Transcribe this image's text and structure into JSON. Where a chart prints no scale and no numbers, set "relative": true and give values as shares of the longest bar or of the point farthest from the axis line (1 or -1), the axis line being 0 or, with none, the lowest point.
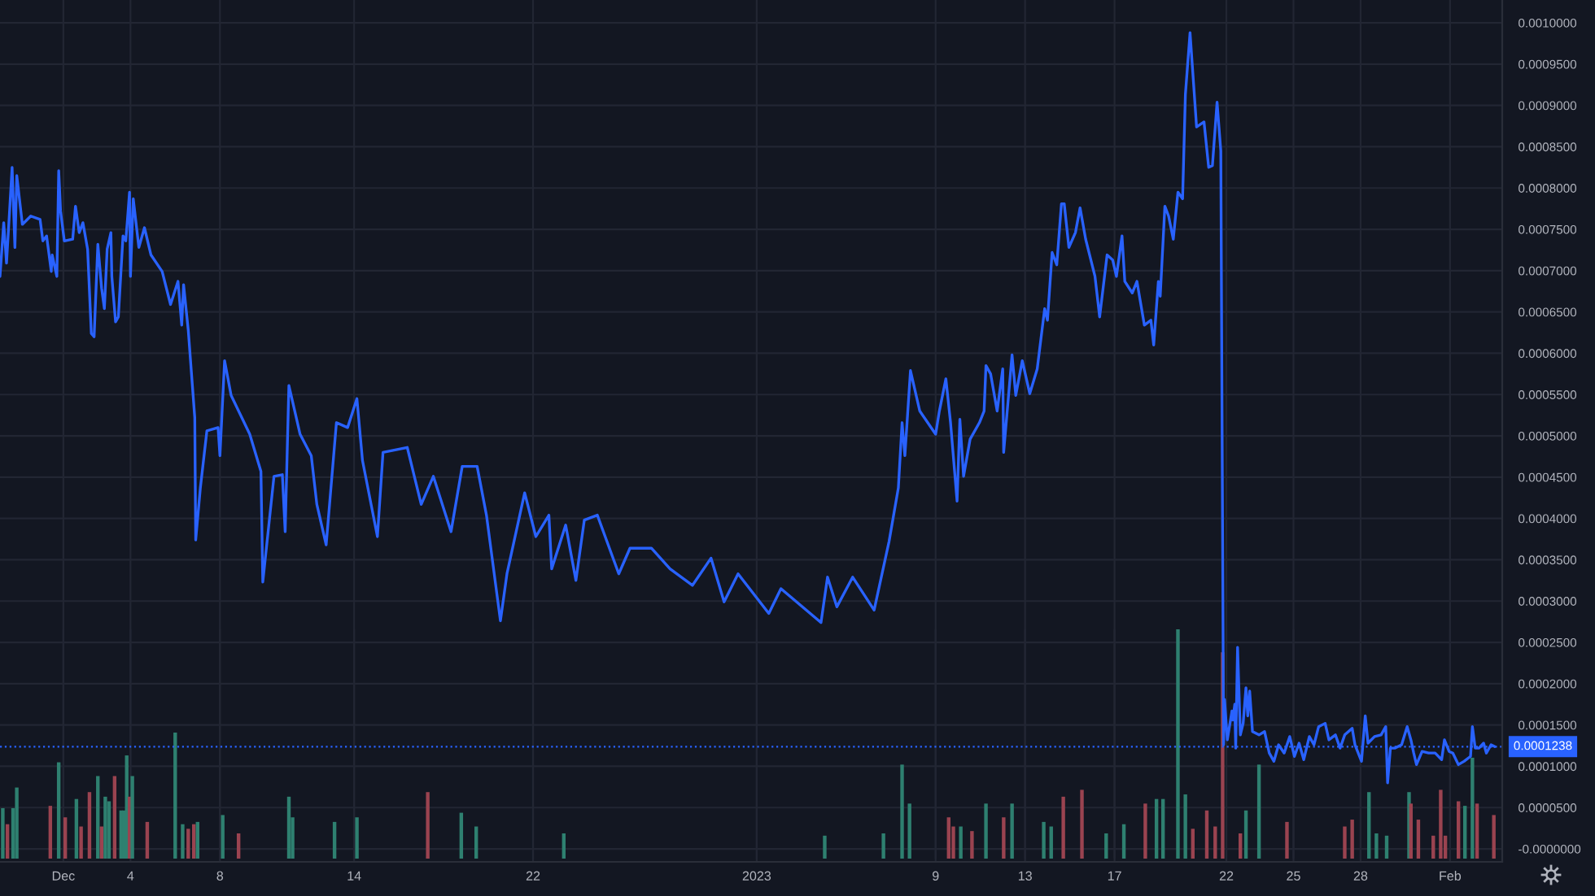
{
  "chart_data": [
    {
      "type": "line",
      "x": [
        "2022-11-28T04:00",
        "2022-11-28T08:00",
        "2022-11-28T11:00",
        "2022-11-28T17:00",
        "2022-11-28T20:00",
        "2022-11-28T22:00",
        "2022-11-29T04:00",
        "2022-11-29T13:00",
        "2022-11-29T23:00",
        "2022-11-30T02:00",
        "2022-11-30T06:00",
        "2022-11-30T11:00",
        "2022-11-30T12:00",
        "2022-11-30T17:00",
        "2022-11-30T19:00",
        "2022-11-30T21:00",
        "2022-12-01T01:00",
        "2022-12-01T10:00",
        "2022-12-01T13:00",
        "2022-12-01T17:00",
        "2022-12-01T21:00",
        "2022-12-02T02:00",
        "2022-12-02T06:00",
        "2022-12-02T09:00",
        "2022-12-02T13:00",
        "2022-12-02T17:00",
        "2022-12-02T20:00",
        "2022-12-02T23:00",
        "2022-12-03T03:00",
        "2022-12-03T04:00",
        "2022-12-03T08:00",
        "2022-12-03T11:00",
        "2022-12-03T16:00",
        "2022-12-03T19:00",
        "2022-12-03T23:00",
        "2022-12-04T00:00",
        "2022-12-04T03:00",
        "2022-12-04T09:00",
        "2022-12-04T15:00",
        "2022-12-04T22:00",
        "2022-12-05T10:00",
        "2022-12-05T19:00",
        "2022-12-06T03:00",
        "2022-12-06T07:00",
        "2022-12-06T09:00",
        "2022-12-06T14:00",
        "2022-12-06T21:00",
        "2022-12-06T22:00",
        "2022-12-07T03:00",
        "2022-12-07T10:00",
        "2022-12-07T22:00",
        "2022-12-08T00:00",
        "2022-12-08T05:00",
        "2022-12-08T12:00",
        "2022-12-09T08:00",
        "2022-12-09T20:00",
        "2022-12-09T22:00",
        "2022-12-10T10:00",
        "2022-12-10T19:00",
        "2022-12-10T22:00",
        "2022-12-11T02:00",
        "2022-12-11T14:00",
        "2022-12-12T02:00",
        "2022-12-12T08:00",
        "2022-12-12T18:00",
        "2022-12-13T05:00",
        "2022-12-13T17:00",
        "2022-12-14T03:00",
        "2022-12-14T09:00",
        "2022-12-15T01:00",
        "2022-12-15T07:00",
        "2022-12-16T09:00",
        "2022-12-17T00:00",
        "2022-12-17T13:00",
        "2022-12-18T08:00",
        "2022-12-18T20:00",
        "2022-12-19T12:00",
        "2022-12-19T22:00",
        "2022-12-20T13:00",
        "2022-12-20T20:00",
        "2022-12-21T15:00",
        "2022-12-22T03:00",
        "2022-12-22T17:00",
        "2022-12-22T20:00",
        "2022-12-23T11:00",
        "2022-12-23T22:00",
        "2022-12-24T07:00",
        "2022-12-24T21:00",
        "2022-12-25T20:00",
        "2022-12-26T08:00",
        "2022-12-27T07:00",
        "2022-12-28T03:00",
        "2022-12-29T03:00",
        "2022-12-29T23:00",
        "2022-12-30T13:00",
        "2022-12-31T04:00",
        "2023-01-01T13:00",
        "2023-01-02T02:00",
        "2023-01-03T21:00",
        "2023-01-04T04:00",
        "2023-01-04T14:00",
        "2023-01-05T07:00",
        "2023-01-06T06:00",
        "2023-01-06T22:00",
        "2023-01-07T08:00",
        "2023-01-07T12:00",
        "2023-01-07T15:00",
        "2023-01-07T21:00",
        "2023-01-08T07:00",
        "2023-01-09T00:00",
        "2023-01-09T04:00",
        "2023-01-09T11:00",
        "2023-01-09T16:00",
        "2023-01-09T23:00",
        "2023-01-10T02:00",
        "2023-01-10T06:00",
        "2023-01-10T13:00",
        "2023-01-10T23:00",
        "2023-01-11T04:00",
        "2023-01-11T06:00",
        "2023-01-11T11:00",
        "2023-01-11T18:00",
        "2023-01-12T00:00",
        "2023-01-12T01:00",
        "2023-01-12T10:00",
        "2023-01-12T14:00",
        "2023-01-12T21:00",
        "2023-01-13T05:00",
        "2023-01-13T13:00",
        "2023-01-13T21:00",
        "2023-01-14T00:00",
        "2023-01-14T05:00",
        "2023-01-14T10:00",
        "2023-01-14T15:00",
        "2023-01-14T18:00",
        "2023-01-14T23:00",
        "2023-01-15T06:00",
        "2023-01-15T11:00",
        "2023-01-15T17:00",
        "2023-01-16T03:00",
        "2023-01-16T08:00",
        "2023-01-16T16:00",
        "2023-01-16T22:00",
        "2023-01-17T02:00",
        "2023-01-17T08:00",
        "2023-01-17T11:00",
        "2023-01-17T19:00",
        "2023-01-18T00:00",
        "2023-01-18T08:00",
        "2023-01-18T15:00",
        "2023-01-18T18:00",
        "2023-01-18T23:00",
        "2023-01-19T01:00",
        "2023-01-19T06:00",
        "2023-01-19T10:00",
        "2023-01-19T15:00",
        "2023-01-19T20:00",
        "2023-01-20T01:00",
        "2023-01-20T04:00",
        "2023-01-20T09:00",
        "2023-01-20T16:00",
        "2023-01-21T00:00",
        "2023-01-21T05:00",
        "2023-01-21T09:00",
        "2023-01-21T14:00",
        "2023-01-21T18:00",
        "2023-01-21T21:00",
        "2023-01-21T22:00",
        "2023-01-22T01:00",
        "2023-01-22T06:00",
        "2023-01-22T07:00",
        "2023-01-22T09:00",
        "2023-01-22T10:00",
        "2023-01-22T12:00",
        "2023-01-22T15:00",
        "2023-01-22T18:00",
        "2023-01-22T21:00",
        "2023-01-22T23:00",
        "2023-01-23T01:00",
        "2023-01-23T04:00",
        "2023-01-23T11:00",
        "2023-01-23T17:00",
        "2023-01-23T22:00",
        "2023-01-24T03:00",
        "2023-01-24T08:00",
        "2023-01-24T14:00",
        "2023-01-24T20:00",
        "2023-01-25T01:00",
        "2023-01-25T06:00",
        "2023-01-25T11:00",
        "2023-01-25T17:00",
        "2023-01-25T22:00",
        "2023-01-26T03:00",
        "2023-01-26T10:00",
        "2023-01-26T14:00",
        "2023-01-26T21:00",
        "2023-01-27T02:00",
        "2023-01-27T07:00",
        "2023-01-27T15:00",
        "2023-01-27T18:00",
        "2023-01-28T01:00",
        "2023-01-28T05:00",
        "2023-01-28T08:00",
        "2023-01-28T15:00",
        "2023-01-28T22:00",
        "2023-01-29T03:00",
        "2023-01-29T05:00",
        "2023-01-29T08:00",
        "2023-01-29T13:00",
        "2023-01-29T20:00",
        "2023-01-30T02:00",
        "2023-01-30T06:00",
        "2023-01-30T09:00",
        "2023-01-30T12:00",
        "2023-01-30T18:00",
        "2023-01-31T01:00",
        "2023-01-31T08:00",
        "2023-01-31T15:00",
        "2023-01-31T18:00",
        "2023-01-31T23:00",
        "2023-02-01T03:00",
        "2023-02-01T09:00",
        "2023-02-01T15:00",
        "2023-02-01T22:00",
        "2023-02-02T00:00",
        "2023-02-02T03:00",
        "2023-02-02T07:00",
        "2023-02-02T12:00",
        "2023-02-02T15:00",
        "2023-02-02T20:00",
        "2023-02-03T00:00"
      ],
      "series": [
        {
          "color": "#2962ff",
          "values": [
            0.000693,
            0.000758,
            0.000709,
            0.000825,
            0.000728,
            0.000815,
            0.000756,
            0.000766,
            0.000762,
            0.000736,
            0.000742,
            0.000699,
            0.000719,
            0.000693,
            0.000821,
            0.000772,
            0.000736,
            0.000738,
            0.000778,
            0.000746,
            0.000758,
            0.000726,
            0.000624,
            0.00062,
            0.000732,
            0.000679,
            0.000654,
            0.000726,
            0.000746,
            0.000693,
            0.000638,
            0.000644,
            0.000742,
            0.000736,
            0.000795,
            0.000693,
            0.000787,
            0.000728,
            0.000752,
            0.000719,
            0.000699,
            0.000659,
            0.000687,
            0.000634,
            0.000683,
            0.000628,
            0.000522,
            0.000374,
            0.000437,
            0.000506,
            0.00051,
            0.000476,
            0.000591,
            0.000549,
            0.000502,
            0.000457,
            0.000323,
            0.000451,
            0.000453,
            0.000384,
            0.000561,
            0.000502,
            0.000476,
            0.000417,
            0.000368,
            0.000516,
            0.00051,
            0.000545,
            0.00047,
            0.000378,
            0.00048,
            0.000486,
            0.000417,
            0.000451,
            0.000384,
            0.000463,
            0.000463,
            0.000404,
            0.000276,
            0.000333,
            0.000431,
            0.000378,
            0.000404,
            0.000339,
            0.000392,
            0.000325,
            0.000398,
            0.000404,
            0.000333,
            0.000364,
            0.000364,
            0.000339,
            0.000319,
            0.000352,
            0.000299,
            0.000333,
            0.000285,
            0.000315,
            0.000274,
            0.000329,
            0.000293,
            0.000329,
            0.000289,
            0.000372,
            0.000437,
            0.000516,
            0.000476,
            0.000579,
            0.00053,
            0.000502,
            0.00053,
            0.000569,
            0.000516,
            0.000421,
            0.00052,
            0.000451,
            0.000496,
            0.000516,
            0.00053,
            0.000585,
            0.000575,
            0.00053,
            0.000581,
            0.00048,
            0.000598,
            0.000549,
            0.000591,
            0.000551,
            0.000581,
            0.000654,
            0.00064,
            0.000722,
            0.000707,
            0.000781,
            0.000781,
            0.000728,
            0.000746,
            0.000776,
            0.000738,
            0.000693,
            0.000644,
            0.000719,
            0.000713,
            0.000693,
            0.000742,
            0.000687,
            0.000673,
            0.000687,
            0.000634,
            0.00064,
            0.00061,
            0.000687,
            0.000669,
            0.000778,
            0.000766,
            0.000738,
            0.000795,
            0.000787,
            0.000913,
            0.000988,
            0.000874,
            0.00088,
            0.000825,
            0.000827,
            0.000904,
            0.000845,
            0.000126,
            0.000181,
            0.000132,
            0.000167,
            0.000156,
            0.000175,
            0.000122,
            0.000244,
            0.000138,
            0.000152,
            0.000195,
            0.000161,
            0.000191,
            0.000142,
            0.000138,
            0.000142,
            0.000116,
            0.000106,
            0.000126,
            0.000116,
            0.000136,
            0.000112,
            0.000128,
            0.000108,
            0.000136,
            0.000126,
            0.000148,
            0.000152,
            0.000132,
            0.000138,
            0.000122,
            0.000138,
            0.000146,
            0.000126,
            0.000106,
            0.000161,
            0.000128,
            0.000136,
            0.000138,
            0.000148,
            8e-05,
            0.000122,
            0.000122,
            0.000126,
            0.000148,
            0.000132,
            0.000116,
            0.000102,
            0.000118,
            0.000116,
            0.000116,
            0.000108,
            0.000132,
            0.000118,
            0.000116,
            0.000102,
            0.000106,
            0.000112,
            0.000148,
            0.000122,
            0.000122,
            0.000128,
            0.000116,
            0.000126,
            0.0001238
          ]
        }
      ],
      "xlim": [
        "2022-11-28T04:00",
        "2023-02-03T08:00"
      ],
      "xticks": [
        {
          "value": "2022-12-01",
          "label": "Dec"
        },
        {
          "value": "2022-12-04",
          "label": "4"
        },
        {
          "value": "2022-12-08",
          "label": "8"
        },
        {
          "value": "2022-12-14",
          "label": "14"
        },
        {
          "value": "2022-12-22",
          "label": "22"
        },
        {
          "value": "2023-01-01",
          "label": "2023"
        },
        {
          "value": "2023-01-09",
          "label": "9"
        },
        {
          "value": "2023-01-13",
          "label": "13"
        },
        {
          "value": "2023-01-17",
          "label": "17"
        },
        {
          "value": "2023-01-22",
          "label": "22"
        },
        {
          "value": "2023-01-25",
          "label": "25"
        },
        {
          "value": "2023-01-28",
          "label": "28"
        },
        {
          "value": "2023-02-01",
          "label": "Feb"
        }
      ],
      "ylim": [
        -1.57e-05,
        0.0010276
      ],
      "yticks": [
        {
          "value": 0,
          "label": "-0.0000000"
        },
        {
          "value": 5e-05,
          "label": "0.0000500"
        },
        {
          "value": 0.0001,
          "label": "0.0001000"
        },
        {
          "value": 0.00015,
          "label": "0.0001500"
        },
        {
          "value": 0.0002,
          "label": "0.0002000"
        },
        {
          "value": 0.00025,
          "label": "0.0002500"
        },
        {
          "value": 0.0003,
          "label": "0.0003000"
        },
        {
          "value": 0.00035,
          "label": "0.0003500"
        },
        {
          "value": 0.0004,
          "label": "0.0004000"
        },
        {
          "value": 0.00045,
          "label": "0.0004500"
        },
        {
          "value": 0.0005,
          "label": "0.0005000"
        },
        {
          "value": 0.00055,
          "label": "0.0005500"
        },
        {
          "value": 0.0006,
          "label": "0.0006000"
        },
        {
          "value": 0.00065,
          "label": "0.0006500"
        },
        {
          "value": 0.0007,
          "label": "0.0007000"
        },
        {
          "value": 0.00075,
          "label": "0.0007500"
        },
        {
          "value": 0.0008,
          "label": "0.0008000"
        },
        {
          "value": 0.00085,
          "label": "0.0008500"
        },
        {
          "value": 0.0009,
          "label": "0.0009000"
        },
        {
          "value": 0.00095,
          "label": "0.0009500"
        },
        {
          "value": 0.001,
          "label": "0.0010000"
        }
      ],
      "grid": true,
      "ref_lines": [
        {
          "axis": "y",
          "value": 0.0001238,
          "label": "0.0001238",
          "color": "#2962ff",
          "line_style": "dotted"
        }
      ]
    },
    {
      "type": "bar",
      "relative": true,
      "x": [
        "2022-11-28T07:00",
        "2022-11-28T12:00",
        "2022-11-28T18:00",
        "2022-11-28T22:00",
        "2022-11-30T10:00",
        "2022-11-30T19:00",
        "2022-12-01T02:00",
        "2022-12-01T14:00",
        "2022-12-01T19:00",
        "2022-12-02T04:00",
        "2022-12-02T13:00",
        "2022-12-02T17:00",
        "2022-12-02T21:00",
        "2022-12-03T01:00",
        "2022-12-03T07:00",
        "2022-12-03T14:00",
        "2022-12-03T17:00",
        "2022-12-03T20:00",
        "2022-12-03T23:00",
        "2022-12-04T02:00",
        "2022-12-04T18:00",
        "2022-12-06T00:00",
        "2022-12-06T08:00",
        "2022-12-06T14:00",
        "2022-12-06T20:00",
        "2022-12-07T00:00",
        "2022-12-08T03:00",
        "2022-12-08T20:00",
        "2022-12-11T02:00",
        "2022-12-11T06:00",
        "2022-12-13T03:00",
        "2022-12-14T03:00",
        "2022-12-17T07:00",
        "2022-12-18T19:00",
        "2022-12-19T11:00",
        "2022-12-23T09:00",
        "2023-01-04T01:00",
        "2023-01-06T16:00",
        "2023-01-07T12:00",
        "2023-01-07T20:00",
        "2023-01-09T14:00",
        "2023-01-09T19:00",
        "2023-01-10T03:00",
        "2023-01-10T15:00",
        "2023-01-11T06:00",
        "2023-01-12T01:00",
        "2023-01-12T10:00",
        "2023-01-13T20:00",
        "2023-01-14T04:00",
        "2023-01-14T17:00",
        "2023-01-15T13:00",
        "2023-01-16T15:00",
        "2023-01-17T10:00",
        "2023-01-18T09:00",
        "2023-01-18T21:00",
        "2023-01-19T04:00",
        "2023-01-19T20:00",
        "2023-01-20T04:00",
        "2023-01-20T12:00",
        "2023-01-21T03:00",
        "2023-01-21T12:00",
        "2023-01-21T20:00",
        "2023-01-22T15:00",
        "2023-01-22T21:00",
        "2023-01-23T11:00",
        "2023-01-24T17:00",
        "2023-01-27T07:00",
        "2023-01-27T15:00",
        "2023-01-28T09:00",
        "2023-01-28T17:00",
        "2023-01-29T04:00",
        "2023-01-30T04:00",
        "2023-01-30T06:00",
        "2023-01-30T14:00",
        "2023-01-31T06:00",
        "2023-01-31T14:00",
        "2023-01-31T19:00",
        "2023-02-01T09:00",
        "2023-02-01T16:00",
        "2023-02-02T00:00",
        "2023-02-02T05:00",
        "2023-02-02T23:00"
      ],
      "values": [
        0.22,
        0.15,
        0.22,
        0.31,
        0.23,
        0.42,
        0.18,
        0.26,
        0.14,
        0.29,
        0.36,
        0.14,
        0.27,
        0.25,
        0.36,
        0.21,
        0.21,
        0.45,
        0.27,
        0.36,
        0.16,
        0.55,
        0.15,
        0.13,
        0.15,
        0.16,
        0.19,
        0.11,
        0.27,
        0.18,
        0.16,
        0.18,
        0.29,
        0.2,
        0.14,
        0.11,
        0.1,
        0.11,
        0.41,
        0.24,
        0.18,
        0.14,
        0.14,
        0.12,
        0.24,
        0.18,
        0.24,
        0.16,
        0.14,
        0.27,
        0.3,
        0.11,
        0.15,
        0.24,
        0.26,
        0.26,
        1,
        0.28,
        0.13,
        0.21,
        0.14,
        0.9,
        0.11,
        0.21,
        0.41,
        0.16,
        0.14,
        0.17,
        0.29,
        0.11,
        0.1,
        0.29,
        0.24,
        0.17,
        0.1,
        0.3,
        0.1,
        0.25,
        0.23,
        0.44,
        0.24,
        0.19
      ],
      "colors": [
        "#2e8070",
        "#9a4350",
        "#2e8070",
        "#2e8070",
        "#9a4350",
        "#2e8070",
        "#9a4350",
        "#2e8070",
        "#9a4350",
        "#9a4350",
        "#2e8070",
        "#9a4350",
        "#2e8070",
        "#2e8070",
        "#9a4350",
        "#2e8070",
        "#2e8070",
        "#2e8070",
        "#9a4350",
        "#2e8070",
        "#9a4350",
        "#2e8070",
        "#2e8070",
        "#9a4350",
        "#9a4350",
        "#2e8070",
        "#2e8070",
        "#9a4350",
        "#2e8070",
        "#2e8070",
        "#2e8070",
        "#2e8070",
        "#9a4350",
        "#2e8070",
        "#2e8070",
        "#2e8070",
        "#2e8070",
        "#2e8070",
        "#2e8070",
        "#2e8070",
        "#9a4350",
        "#9a4350",
        "#2e8070",
        "#9a4350",
        "#2e8070",
        "#9a4350",
        "#2e8070",
        "#2e8070",
        "#2e8070",
        "#9a4350",
        "#9a4350",
        "#2e8070",
        "#2e8070",
        "#9a4350",
        "#2e8070",
        "#2e8070",
        "#2e8070",
        "#2e8070",
        "#9a4350",
        "#9a4350",
        "#9a4350",
        "#9a4350",
        "#9a4350",
        "#2e8070",
        "#2e8070",
        "#9a4350",
        "#9a4350",
        "#9a4350",
        "#2e8070",
        "#2e8070",
        "#2e8070",
        "#2e8070",
        "#9a4350",
        "#9a4350",
        "#9a4350",
        "#9a4350",
        "#9a4350",
        "#9a4350",
        "#2e8070",
        "#2e8070",
        "#9a4350",
        "#9a4350"
      ],
      "xlim": [
        "2022-11-28T04:00",
        "2023-02-03T08:00"
      ],
      "xticks": [
        {
          "value": "2022-12-01",
          "label": null
        },
        {
          "value": "2022-12-04",
          "label": null
        },
        {
          "value": "2022-12-08",
          "label": null
        },
        {
          "value": "2022-12-14",
          "label": null
        },
        {
          "value": "2022-12-22",
          "label": null
        },
        {
          "value": "2023-01-01",
          "label": null
        },
        {
          "value": "2023-01-09",
          "label": null
        },
        {
          "value": "2023-01-13",
          "label": null
        },
        {
          "value": "2023-01-17",
          "label": null
        },
        {
          "value": "2023-01-22",
          "label": null
        },
        {
          "value": "2023-01-25",
          "label": null
        },
        {
          "value": "2023-01-28",
          "label": null
        },
        {
          "value": "2023-02-01",
          "label": null
        }
      ],
      "grid": "x",
      "tick_labels": false
    }
  ]
}
